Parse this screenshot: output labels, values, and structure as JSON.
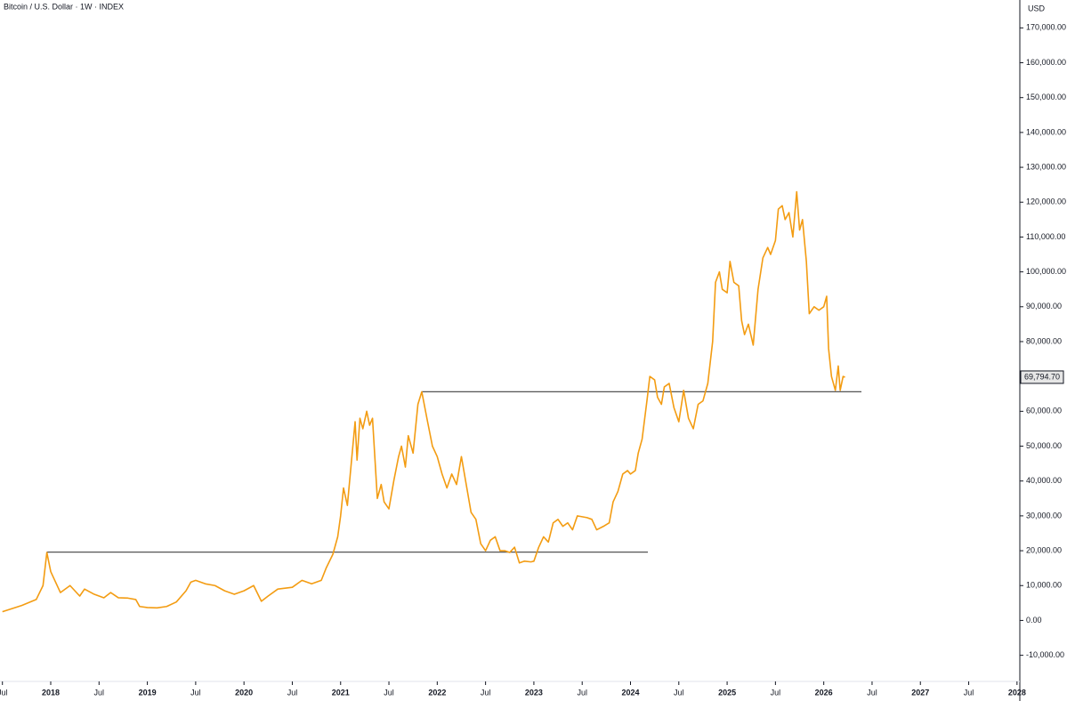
{
  "chart_data": {
    "type": "line",
    "title": "Bitcoin / U.S. Dollar · 1W · INDEX",
    "y_unit": "USD",
    "x": [
      2017.5,
      2017.7,
      2017.85,
      2017.92,
      2017.96,
      2018.0,
      2018.05,
      2018.1,
      2018.2,
      2018.3,
      2018.35,
      2018.45,
      2018.55,
      2018.62,
      2018.7,
      2018.8,
      2018.88,
      2018.92,
      2019.0,
      2019.1,
      2019.2,
      2019.3,
      2019.4,
      2019.45,
      2019.5,
      2019.6,
      2019.7,
      2019.8,
      2019.9,
      2020.0,
      2020.1,
      2020.18,
      2020.25,
      2020.35,
      2020.5,
      2020.6,
      2020.7,
      2020.8,
      2020.85,
      2020.92,
      2020.97,
      2021.0,
      2021.03,
      2021.07,
      2021.12,
      2021.15,
      2021.17,
      2021.2,
      2021.23,
      2021.27,
      2021.3,
      2021.33,
      2021.38,
      2021.42,
      2021.45,
      2021.5,
      2021.55,
      2021.6,
      2021.63,
      2021.67,
      2021.7,
      2021.75,
      2021.8,
      2021.84,
      2021.9,
      2021.95,
      2022.0,
      2022.05,
      2022.1,
      2022.15,
      2022.2,
      2022.25,
      2022.3,
      2022.35,
      2022.4,
      2022.45,
      2022.5,
      2022.55,
      2022.6,
      2022.65,
      2022.7,
      2022.75,
      2022.8,
      2022.85,
      2022.9,
      2022.97,
      2023.0,
      2023.05,
      2023.1,
      2023.15,
      2023.2,
      2023.25,
      2023.3,
      2023.35,
      2023.4,
      2023.45,
      2023.55,
      2023.6,
      2023.65,
      2023.72,
      2023.78,
      2023.82,
      2023.87,
      2023.92,
      2023.97,
      2024.0,
      2024.05,
      2024.08,
      2024.12,
      2024.17,
      2024.2,
      2024.25,
      2024.28,
      2024.32,
      2024.35,
      2024.4,
      2024.45,
      2024.5,
      2024.55,
      2024.6,
      2024.65,
      2024.7,
      2024.75,
      2024.8,
      2024.85,
      2024.88,
      2024.92,
      2024.95,
      2025.0,
      2025.03,
      2025.07,
      2025.12,
      2025.15,
      2025.18,
      2025.22,
      2025.27,
      2025.32,
      2025.37,
      2025.42,
      2025.45,
      2025.5,
      2025.53,
      2025.57,
      2025.6,
      2025.64,
      2025.68,
      2025.72,
      2025.75,
      2025.78,
      2025.82,
      2025.85,
      2025.9,
      2025.95,
      2026.0,
      2026.03,
      2026.05,
      2026.08,
      2026.12,
      2026.15,
      2026.17,
      2026.2,
      2026.22
    ],
    "series": [
      {
        "color": "#f39c12",
        "values": [
          2500,
          4300,
          6000,
          10000,
          19500,
          14000,
          11000,
          8000,
          10000,
          7000,
          9000,
          7500,
          6500,
          8000,
          6500,
          6400,
          6000,
          4000,
          3700,
          3600,
          4000,
          5300,
          8500,
          11000,
          11500,
          10500,
          10000,
          8500,
          7500,
          8500,
          10000,
          5500,
          7000,
          9000,
          9500,
          11500,
          10500,
          11500,
          15000,
          19000,
          24000,
          30000,
          38000,
          33000,
          48000,
          57000,
          46000,
          58000,
          55000,
          60000,
          56000,
          58000,
          35000,
          39000,
          34000,
          32000,
          40000,
          47000,
          50000,
          44000,
          53000,
          48000,
          62000,
          65600,
          57000,
          50000,
          47000,
          42000,
          38000,
          42000,
          39000,
          47000,
          39000,
          31000,
          29000,
          22000,
          20000,
          23000,
          24000,
          20000,
          20000,
          19500,
          21000,
          16500,
          17000,
          16800,
          17000,
          21000,
          24000,
          22500,
          28000,
          29000,
          27000,
          28000,
          26000,
          30000,
          29500,
          29000,
          26000,
          27000,
          28000,
          34000,
          37000,
          42000,
          43000,
          42000,
          43000,
          48000,
          52000,
          63000,
          70000,
          69000,
          64000,
          62000,
          67000,
          68000,
          61000,
          57000,
          66000,
          58000,
          55000,
          62000,
          63000,
          68000,
          80000,
          97000,
          100000,
          95000,
          94000,
          103000,
          97000,
          96000,
          86000,
          82000,
          85000,
          79000,
          95000,
          104000,
          107000,
          105000,
          109000,
          118000,
          119000,
          115000,
          117000,
          110000,
          123000,
          112000,
          115000,
          103000,
          88000,
          90000,
          89000,
          90000,
          93000,
          78000,
          70000,
          66000,
          73000,
          66000,
          70000,
          69794.7
        ]
      }
    ],
    "levels": [
      {
        "value": 19600,
        "x": [
          2017.96,
          2024.18
        ]
      },
      {
        "value": 65600,
        "x": [
          2021.84,
          2026.39
        ]
      }
    ],
    "last_price": {
      "value": 69794.7,
      "label": "69,794.70"
    },
    "xlim": [
      2017.475,
      2028.02
    ],
    "xticks": [
      {
        "value": 2017.5,
        "label": "Jul"
      },
      2018,
      {
        "value": 2018.5,
        "label": "Jul"
      },
      2019,
      {
        "value": 2019.5,
        "label": "Jul"
      },
      2020,
      {
        "value": 2020.5,
        "label": "Jul"
      },
      2021,
      {
        "value": 2021.5,
        "label": "Jul"
      },
      2022,
      {
        "value": 2022.5,
        "label": "Jul"
      },
      2023,
      {
        "value": 2023.5,
        "label": "Jul"
      },
      2024,
      {
        "value": 2024.5,
        "label": "Jul"
      },
      2025,
      {
        "value": 2025.5,
        "label": "Jul"
      },
      2026,
      {
        "value": 2026.5,
        "label": "Jul"
      },
      2027,
      {
        "value": 2027.5,
        "label": "Jul"
      },
      2028
    ],
    "ylim": [
      -17500,
      178000
    ],
    "yticks": [
      {
        "value": -10000,
        "label": "-10,000.00"
      },
      {
        "value": 0,
        "label": "0.00"
      },
      {
        "value": 10000,
        "label": "10,000.00"
      },
      {
        "value": 20000,
        "label": "20,000.00"
      },
      {
        "value": 30000,
        "label": "30,000.00"
      },
      {
        "value": 40000,
        "label": "40,000.00"
      },
      {
        "value": 50000,
        "label": "50,000.00"
      },
      {
        "value": 60000,
        "label": "60,000.00"
      },
      {
        "value": 70000,
        "label": "70,000.00"
      },
      {
        "value": 80000,
        "label": "80,000.00"
      },
      {
        "value": 90000,
        "label": "90,000.00"
      },
      {
        "value": 100000,
        "label": "100,000.00"
      },
      {
        "value": 110000,
        "label": "110,000.00"
      },
      {
        "value": 120000,
        "label": "120,000.00"
      },
      {
        "value": 130000,
        "label": "130,000.00"
      },
      {
        "value": 140000,
        "label": "140,000.00"
      },
      {
        "value": 150000,
        "label": "150,000.00"
      },
      {
        "value": 160000,
        "label": "160,000.00"
      },
      {
        "value": 170000,
        "label": "170,000.00"
      }
    ]
  }
}
